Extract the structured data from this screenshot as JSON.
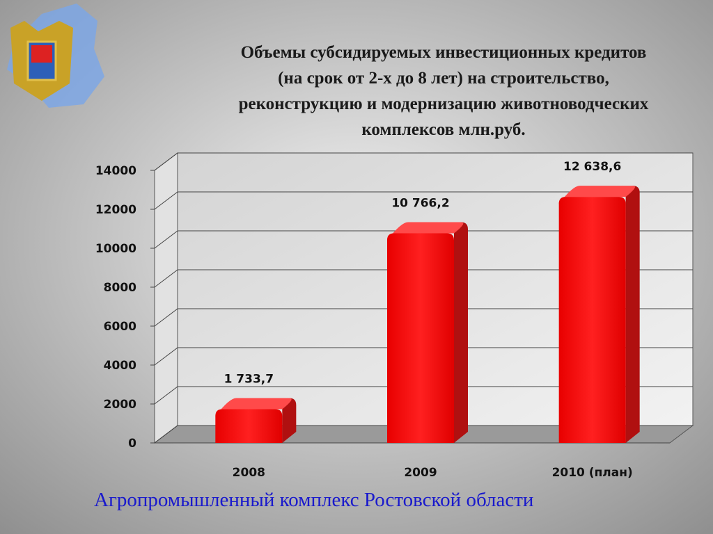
{
  "chart_data": {
    "type": "bar3d",
    "title": [
      "Объемы субсидируемых инвестиционных  кредитов",
      "(на срок от 2-х до 8 лет) на строительство,",
      "реконструкцию и модернизацию животноводческих",
      "комплексов млн.руб."
    ],
    "categories": [
      "2008",
      "2009",
      "2010 (план)"
    ],
    "values": [
      1733.7,
      10766.2,
      12638.6
    ],
    "value_labels": [
      "1 733,7",
      "10 766,2",
      "12 638,6"
    ],
    "color": "#ff1a1a",
    "ylim": [
      0,
      14000
    ],
    "yticks": [
      0,
      2000,
      4000,
      6000,
      8000,
      10000,
      12000,
      14000
    ],
    "grid": true
  },
  "footer": "Агропромышленный комплекс Ростовской области"
}
